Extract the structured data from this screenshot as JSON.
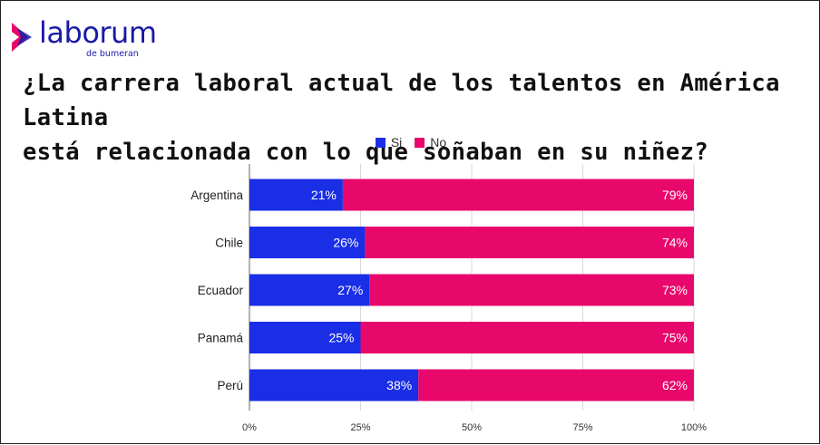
{
  "logo": {
    "name": "laborum",
    "tagline": "de bumeran"
  },
  "title_line1": "¿La carrera laboral actual de los talentos en América Latina",
  "title_line2": "está relacionada con lo que soñaban en su niñez?",
  "colors": {
    "si": "#1a2ee6",
    "no": "#e8076a",
    "brand": "#1a1aa8",
    "logo_accent": "#e8076a"
  },
  "chart_data": {
    "type": "bar",
    "orientation": "horizontal",
    "stacked": true,
    "title": "¿La carrera laboral actual de los talentos en América Latina está relacionada con lo que soñaban en su niñez?",
    "categories": [
      "Argentina",
      "Chile",
      "Ecuador",
      "Panamá",
      "Perú"
    ],
    "series": [
      {
        "name": "Si",
        "values": [
          21,
          26,
          27,
          25,
          38
        ]
      },
      {
        "name": "No",
        "values": [
          79,
          74,
          73,
          75,
          62
        ]
      }
    ],
    "xlim": [
      0,
      100
    ],
    "x_ticks": [
      "0%",
      "25%",
      "50%",
      "75%",
      "100%"
    ],
    "value_suffix": "%",
    "legend": "top-center",
    "grid": true
  }
}
